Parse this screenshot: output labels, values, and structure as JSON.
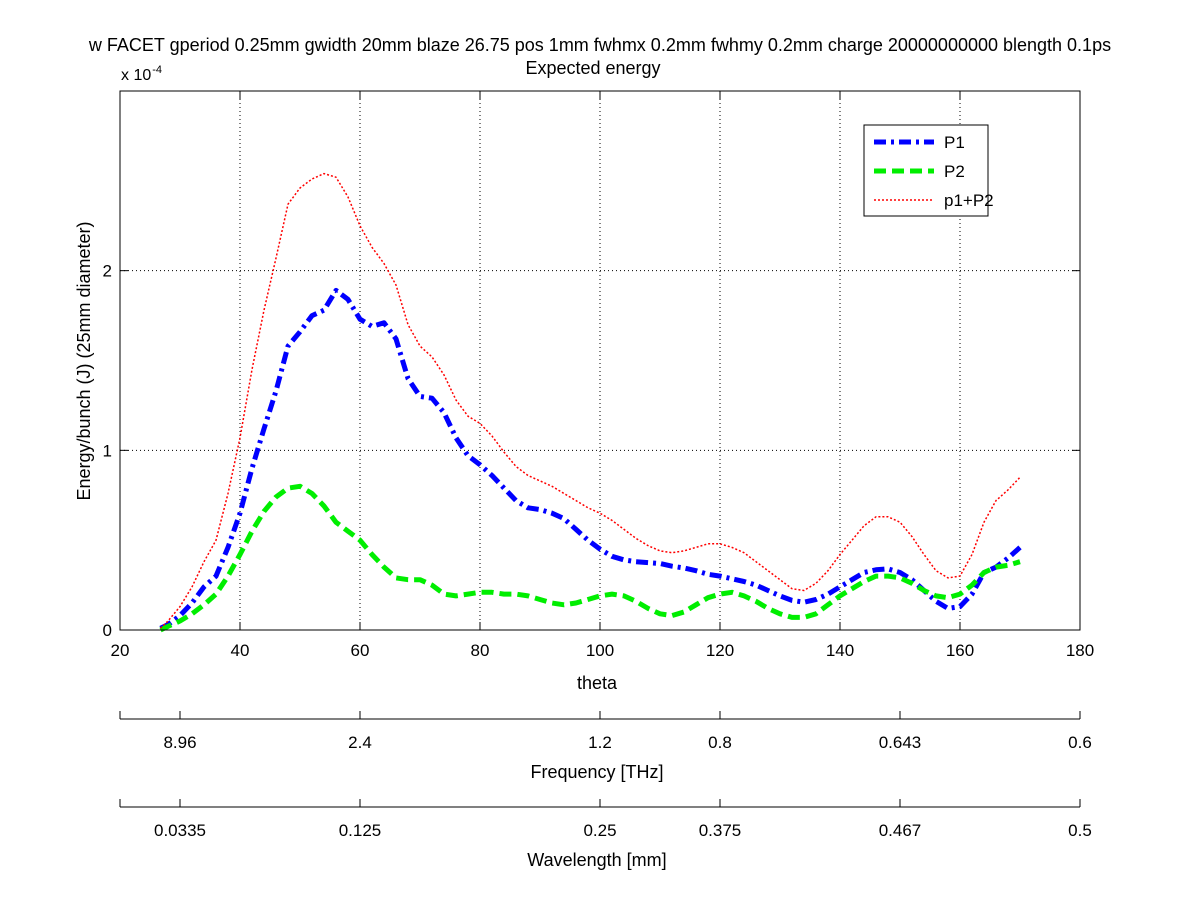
{
  "chart_data": {
    "type": "line",
    "title": "w FACET gperiod 0.25mm gwidth 20mm blaze 26.75 pos 1mm fwhmx 0.2mm fwhmy 0.2mm charge 20000000000 blength 0.1ps",
    "subtitle": "Expected energy",
    "xlabel": "theta",
    "ylabel": "Energy/bunch (J) (25mm diameter)",
    "y_multiplier_base": "x 10",
    "y_multiplier_exp": "-4",
    "xlim": [
      20,
      180
    ],
    "ylim": [
      0,
      3
    ],
    "x_ticks": [
      20,
      40,
      60,
      80,
      100,
      120,
      140,
      160,
      180
    ],
    "x_tick_labels": [
      "20",
      "40",
      "60",
      "80",
      "100",
      "120",
      "140",
      "160",
      "180"
    ],
    "y_ticks": [
      0,
      1,
      2
    ],
    "y_tick_labels": [
      "0",
      "1",
      "2"
    ],
    "grid": true,
    "legend_position": "top-right",
    "secondary_axes": [
      {
        "label": "Frequency [THz]",
        "ticks": [
          20,
          30,
          60,
          100,
          120,
          150,
          180
        ],
        "tick_labels": [
          "",
          "8.96",
          "2.4",
          "1.2",
          "0.8",
          "0.643",
          "0.6"
        ]
      },
      {
        "label": "Wavelength [mm]",
        "ticks": [
          20,
          30,
          60,
          100,
          120,
          150,
          180
        ],
        "tick_labels": [
          "",
          "0.0335",
          "0.125",
          "0.25",
          "0.375",
          "0.467",
          "0.5"
        ]
      }
    ],
    "series": [
      {
        "name": "P1",
        "color": "#0000ff",
        "style": "dashdot",
        "x": [
          26.75,
          28,
          30,
          32,
          34,
          36,
          38,
          40,
          42,
          44,
          46,
          48,
          50,
          52,
          54,
          56,
          58,
          60,
          62,
          64,
          66,
          68,
          70,
          72,
          74,
          76,
          78,
          80,
          82,
          84,
          86,
          88,
          90,
          92,
          94,
          96,
          98,
          100,
          102,
          104,
          106,
          108,
          110,
          112,
          114,
          116,
          118,
          120,
          122,
          124,
          126,
          128,
          130,
          132,
          134,
          136,
          138,
          140,
          142,
          144,
          146,
          148,
          150,
          152,
          154,
          156,
          158,
          160,
          162,
          164,
          166,
          168,
          170
        ],
        "y": [
          0.01,
          0.03,
          0.08,
          0.15,
          0.24,
          0.3,
          0.46,
          0.65,
          0.9,
          1.12,
          1.33,
          1.58,
          1.66,
          1.75,
          1.78,
          1.89,
          1.84,
          1.73,
          1.69,
          1.71,
          1.62,
          1.4,
          1.3,
          1.29,
          1.21,
          1.07,
          0.97,
          0.92,
          0.86,
          0.79,
          0.72,
          0.68,
          0.67,
          0.65,
          0.62,
          0.56,
          0.5,
          0.45,
          0.41,
          0.39,
          0.38,
          0.375,
          0.37,
          0.355,
          0.345,
          0.33,
          0.31,
          0.3,
          0.285,
          0.27,
          0.25,
          0.22,
          0.19,
          0.165,
          0.155,
          0.17,
          0.2,
          0.24,
          0.28,
          0.32,
          0.335,
          0.34,
          0.32,
          0.28,
          0.22,
          0.16,
          0.12,
          0.13,
          0.2,
          0.32,
          0.35,
          0.4,
          0.46
        ]
      },
      {
        "name": "P2",
        "color": "#00ee00",
        "style": "dashed",
        "x": [
          26.75,
          28,
          30,
          32,
          34,
          36,
          38,
          40,
          42,
          44,
          46,
          48,
          50,
          52,
          54,
          56,
          58,
          60,
          62,
          64,
          66,
          68,
          70,
          72,
          74,
          76,
          78,
          80,
          82,
          84,
          86,
          88,
          90,
          92,
          94,
          96,
          98,
          100,
          102,
          104,
          106,
          108,
          110,
          112,
          114,
          116,
          118,
          120,
          122,
          124,
          126,
          128,
          130,
          132,
          134,
          136,
          138,
          140,
          142,
          144,
          146,
          148,
          150,
          152,
          154,
          156,
          158,
          160,
          162,
          164,
          166,
          168,
          170
        ],
        "y": [
          0.0,
          0.02,
          0.05,
          0.09,
          0.14,
          0.2,
          0.3,
          0.42,
          0.55,
          0.66,
          0.74,
          0.79,
          0.8,
          0.76,
          0.69,
          0.6,
          0.55,
          0.5,
          0.42,
          0.35,
          0.29,
          0.28,
          0.28,
          0.25,
          0.2,
          0.19,
          0.2,
          0.21,
          0.21,
          0.2,
          0.2,
          0.19,
          0.17,
          0.15,
          0.14,
          0.15,
          0.17,
          0.19,
          0.2,
          0.19,
          0.16,
          0.12,
          0.09,
          0.08,
          0.1,
          0.14,
          0.18,
          0.2,
          0.21,
          0.19,
          0.16,
          0.12,
          0.09,
          0.07,
          0.07,
          0.09,
          0.14,
          0.19,
          0.23,
          0.27,
          0.3,
          0.3,
          0.29,
          0.26,
          0.22,
          0.19,
          0.18,
          0.2,
          0.25,
          0.32,
          0.35,
          0.36,
          0.38
        ]
      },
      {
        "name": "p1+P2",
        "color": "#ff0000",
        "style": "dotted",
        "x": [
          26.75,
          28,
          30,
          32,
          34,
          36,
          38,
          40,
          42,
          44,
          46,
          48,
          50,
          52,
          54,
          56,
          58,
          60,
          62,
          64,
          66,
          68,
          70,
          72,
          74,
          76,
          78,
          80,
          82,
          84,
          86,
          88,
          90,
          92,
          94,
          96,
          98,
          100,
          102,
          104,
          106,
          108,
          110,
          112,
          114,
          116,
          118,
          120,
          122,
          124,
          126,
          128,
          130,
          132,
          134,
          136,
          138,
          140,
          142,
          144,
          146,
          148,
          150,
          152,
          154,
          156,
          158,
          160,
          162,
          164,
          166,
          168,
          170
        ],
        "y": [
          0.01,
          0.05,
          0.13,
          0.24,
          0.38,
          0.5,
          0.76,
          1.07,
          1.45,
          1.78,
          2.07,
          2.37,
          2.46,
          2.51,
          2.54,
          2.52,
          2.41,
          2.25,
          2.13,
          2.04,
          1.92,
          1.7,
          1.58,
          1.52,
          1.42,
          1.28,
          1.19,
          1.15,
          1.08,
          0.99,
          0.91,
          0.86,
          0.83,
          0.8,
          0.76,
          0.72,
          0.68,
          0.65,
          0.61,
          0.56,
          0.51,
          0.47,
          0.44,
          0.43,
          0.44,
          0.46,
          0.48,
          0.48,
          0.46,
          0.43,
          0.38,
          0.33,
          0.28,
          0.23,
          0.22,
          0.26,
          0.33,
          0.42,
          0.5,
          0.58,
          0.63,
          0.63,
          0.6,
          0.52,
          0.42,
          0.33,
          0.29,
          0.3,
          0.42,
          0.6,
          0.72,
          0.78,
          0.85
        ]
      }
    ]
  }
}
